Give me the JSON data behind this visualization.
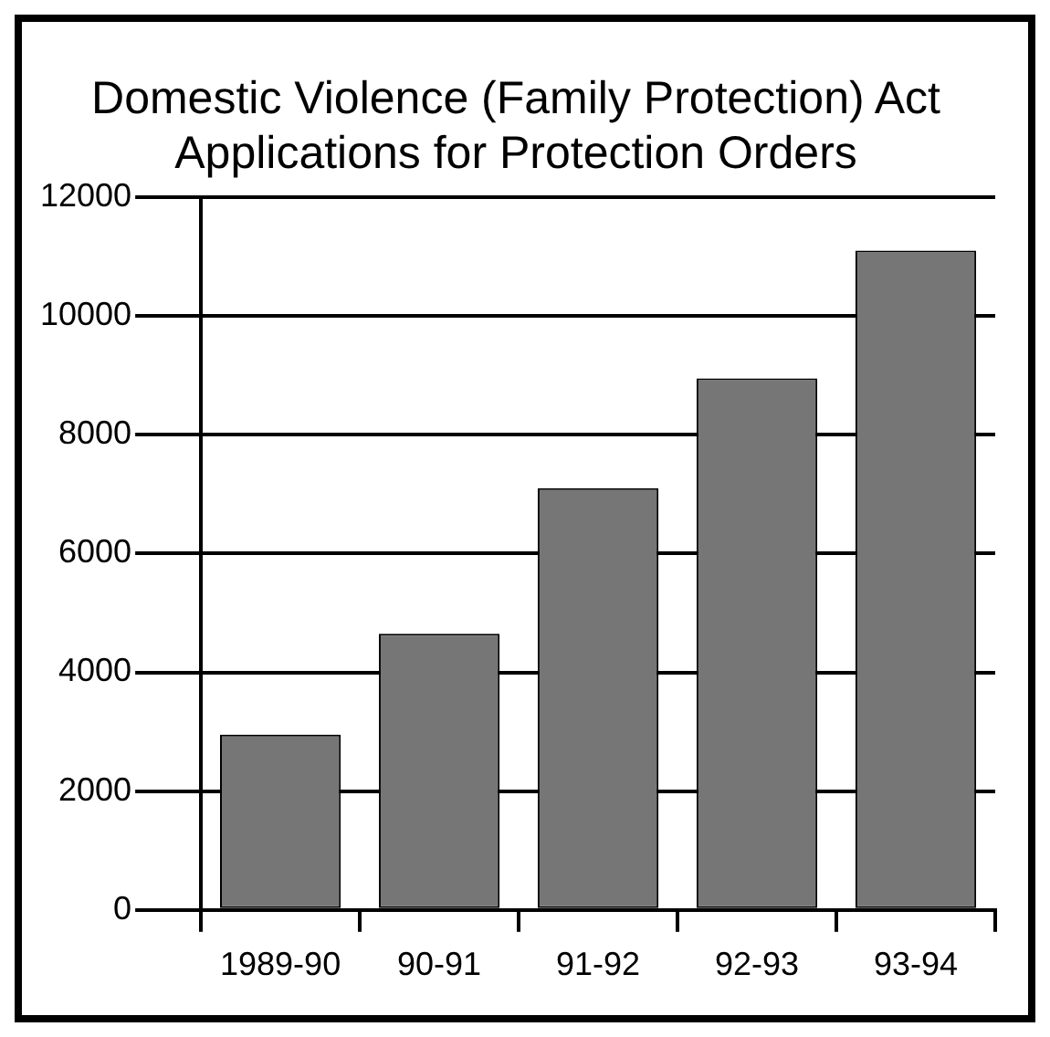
{
  "chart_data": {
    "type": "bar",
    "title": [
      "Domestic Violence (Family Protection) Act",
      "Applications for Protection Orders"
    ],
    "categories": [
      "1989-90",
      "90-91",
      "91-92",
      "92-93",
      "93-94"
    ],
    "values": [
      2950,
      4650,
      7100,
      8950,
      11100
    ],
    "color": "#767676",
    "ylim": [
      0,
      12000
    ],
    "yticks": [
      0,
      2000,
      4000,
      6000,
      8000,
      10000,
      12000
    ],
    "grid": "y"
  }
}
